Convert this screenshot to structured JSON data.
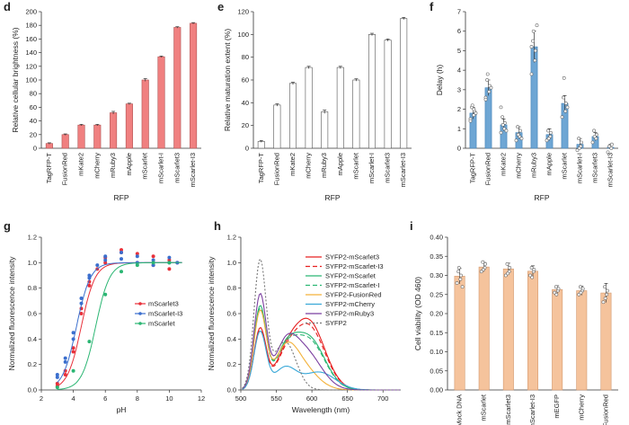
{
  "chart_data": [
    {
      "panel": "d",
      "type": "bar",
      "ylabel": "Relative cellular brightness (%)",
      "xlabel": "RFP",
      "ylim": [
        0,
        200
      ],
      "yticks": [
        0,
        20,
        40,
        60,
        80,
        100,
        120,
        140,
        160,
        180,
        200
      ],
      "categories": [
        "TagRFP-T",
        "FusionRed",
        "mKate2",
        "mCherry",
        "mRuby3",
        "mApple",
        "mScarlet",
        "mScarlet-I",
        "mScarlet3",
        "mScarlet-I3"
      ],
      "values": [
        7,
        20,
        34,
        34,
        52,
        65,
        100,
        134,
        177,
        183
      ],
      "errors": [
        1,
        1,
        1,
        1,
        2,
        1,
        2,
        1,
        1,
        1
      ],
      "color": "#f08080"
    },
    {
      "panel": "e",
      "type": "bar",
      "ylabel": "Relative maturation extent (%)",
      "xlabel": "RFP",
      "ylim": [
        0,
        120
      ],
      "yticks": [
        0,
        20,
        40,
        60,
        80,
        100,
        120
      ],
      "categories": [
        "TagRFP-T",
        "FusionRed",
        "mKate2",
        "mCherry",
        "mRuby3",
        "mApple",
        "mScarlet",
        "mScarlet-I",
        "mScarlet3",
        "mScarlet-I3"
      ],
      "values": [
        6,
        38,
        57,
        71,
        32,
        71,
        60,
        100,
        95,
        114
      ],
      "errors": [
        0.8,
        1,
        1,
        1,
        1.5,
        1,
        1,
        1,
        1,
        1
      ],
      "color": "#ffffff"
    },
    {
      "panel": "f",
      "type": "bar",
      "ylabel": "Delay (h)",
      "xlabel": "RFP",
      "ylim": [
        0,
        7
      ],
      "yticks": [
        0,
        1,
        2,
        3,
        4,
        5,
        6,
        7
      ],
      "categories": [
        "TagRFP-T",
        "FusionRed",
        "mKate2",
        "mCherry",
        "mRuby3",
        "mApple",
        "mScarlet",
        "mScarlet-I",
        "mScarlet3",
        "mScarlet-I3"
      ],
      "values": [
        1.8,
        3.1,
        1.2,
        0.8,
        5.2,
        0.7,
        2.3,
        0.2,
        0.6,
        0.05
      ],
      "errors": [
        0.3,
        0.4,
        0.3,
        0.3,
        0.8,
        0.3,
        0.4,
        0.3,
        0.2,
        0.15
      ],
      "points": [
        [
          1.5,
          1.7,
          1.9,
          2.1,
          2.2,
          1.8,
          1.4,
          2.0
        ],
        [
          2.6,
          2.9,
          3.2,
          3.5,
          3.8,
          3.1,
          2.5
        ],
        [
          0.8,
          1.0,
          1.3,
          1.6,
          1.2,
          0.9,
          2.1
        ],
        [
          0.4,
          0.6,
          0.9,
          1.1,
          0.7,
          0.5
        ],
        [
          3.8,
          4.5,
          5.0,
          5.5,
          6.0,
          6.3,
          5.2
        ],
        [
          0.4,
          0.6,
          0.8,
          0.9,
          0.5
        ],
        [
          1.6,
          1.9,
          2.3,
          2.6,
          3.6,
          2.1
        ],
        [
          -0.1,
          0.1,
          0.3,
          0.5,
          0.0
        ],
        [
          0.3,
          0.5,
          0.7,
          0.9,
          0.6
        ],
        [
          -0.2,
          0.0,
          0.2,
          0.1
        ]
      ],
      "color": "#6ea6d4"
    },
    {
      "panel": "g",
      "type": "scatter",
      "ylabel": "Normalized fluorescence intensity",
      "xlabel": "pH",
      "xlim": [
        2,
        12
      ],
      "ylim": [
        0,
        1.2
      ],
      "xticks": [
        2,
        4,
        6,
        8,
        10,
        12
      ],
      "yticks": [
        0,
        0.2,
        0.4,
        0.6,
        0.8,
        1.0,
        1.2
      ],
      "legend": "center-right",
      "series": [
        {
          "name": "mScarlet3",
          "color": "#e8303a",
          "x": [
            3,
            3,
            3.5,
            3.5,
            4,
            4,
            4.5,
            4.5,
            5,
            5,
            5.5,
            6,
            6,
            7,
            7,
            8,
            8,
            9,
            9,
            10,
            10,
            10.5
          ],
          "y": [
            0.05,
            0.03,
            0.15,
            0.12,
            0.33,
            0.3,
            0.6,
            0.64,
            0.85,
            0.82,
            0.95,
            1.0,
            1.04,
            1.08,
            1.1,
            1.07,
            1.0,
            0.98,
            1.05,
            0.95,
            1.02,
            1.0
          ]
        },
        {
          "name": "mScarlet-I3",
          "color": "#3b6fce",
          "x": [
            3,
            3,
            3.5,
            3.5,
            4,
            4,
            4.5,
            4.5,
            5,
            5,
            5.5,
            6,
            6,
            7,
            7,
            8,
            8,
            9,
            9,
            10,
            10,
            10.5
          ],
          "y": [
            0.12,
            0.1,
            0.25,
            0.22,
            0.45,
            0.4,
            0.68,
            0.72,
            0.9,
            0.88,
            0.98,
            1.02,
            1.05,
            1.08,
            1.03,
            1.05,
            1.0,
            1.02,
            0.98,
            1.0,
            1.04,
            1.0
          ]
        },
        {
          "name": "mScarlet",
          "color": "#2bb673",
          "x": [
            3,
            4,
            5,
            6,
            7,
            8,
            9,
            10
          ],
          "y": [
            0.02,
            0.15,
            0.38,
            0.75,
            0.93,
            0.98,
            1.0,
            1.0
          ]
        }
      ]
    },
    {
      "panel": "h",
      "type": "line",
      "ylabel": "Normalized fluorescence intensity",
      "xlabel": "Wavelength (nm)",
      "xlim": [
        500,
        725
      ],
      "ylim": [
        0,
        1.2
      ],
      "xticks": [
        500,
        550,
        600,
        650,
        700
      ],
      "yticks": [
        0,
        0.2,
        0.4,
        0.6,
        0.8,
        1.0,
        1.2
      ],
      "legend": "top-right",
      "series": [
        {
          "name": "SYFP2-mScarlet3",
          "color": "#e62020",
          "dash": "",
          "A": 0.47,
          "B": 0.54
        },
        {
          "name": "SYFP2-mScarlet-I3",
          "color": "#e62020",
          "dash": "5,3",
          "A": 0.45,
          "B": 0.5
        },
        {
          "name": "SYFP2-mScarlet",
          "color": "#2bb673",
          "dash": "",
          "A": 0.64,
          "B": 0.41
        },
        {
          "name": "SYFP2-mScarlet-I",
          "color": "#2bb673",
          "dash": "5,3",
          "A": 0.62,
          "B": 0.39
        },
        {
          "name": "SYFP2-FusionRed",
          "color": "#f3b23b",
          "dash": "",
          "A": 0.6,
          "B": 0.2
        },
        {
          "name": "SYFP2-mCherry",
          "color": "#39a8d8",
          "dash": "",
          "A": 0.45,
          "B": 0.14
        },
        {
          "name": "SYFP2-mRuby3",
          "color": "#7b3fa0",
          "dash": "",
          "A": 0.73,
          "B": 0.3
        },
        {
          "name": "SYFP2",
          "color": "#777777",
          "dash": "2,2",
          "A": 1.0,
          "B": 0.0
        }
      ]
    },
    {
      "panel": "i",
      "type": "bar",
      "ylabel": "Cell viability (OD 460)",
      "xlabel": "",
      "ylim": [
        0,
        0.4
      ],
      "yticks": [
        0,
        0.05,
        0.1,
        0.15,
        0.2,
        0.25,
        0.3,
        0.35,
        0.4
      ],
      "categories": [
        "Mock DNA",
        "mScarlet",
        "mScarlet3",
        "mScarlet-I3",
        "mEGFP",
        "mCherry",
        "FusionRed"
      ],
      "values": [
        0.298,
        0.322,
        0.317,
        0.311,
        0.263,
        0.26,
        0.254
      ],
      "errors": [
        0.02,
        0.012,
        0.015,
        0.014,
        0.01,
        0.012,
        0.025
      ],
      "points": [
        [
          0.28,
          0.29,
          0.3,
          0.31,
          0.32,
          0.27
        ],
        [
          0.31,
          0.32,
          0.33,
          0.335,
          0.315
        ],
        [
          0.3,
          0.31,
          0.32,
          0.33,
          0.305
        ],
        [
          0.3,
          0.31,
          0.315,
          0.32,
          0.295
        ],
        [
          0.255,
          0.26,
          0.265,
          0.27,
          0.25
        ],
        [
          0.25,
          0.26,
          0.265,
          0.27,
          0.255
        ],
        [
          0.23,
          0.25,
          0.26,
          0.27,
          0.24
        ]
      ],
      "color": "#f5c39c"
    }
  ]
}
